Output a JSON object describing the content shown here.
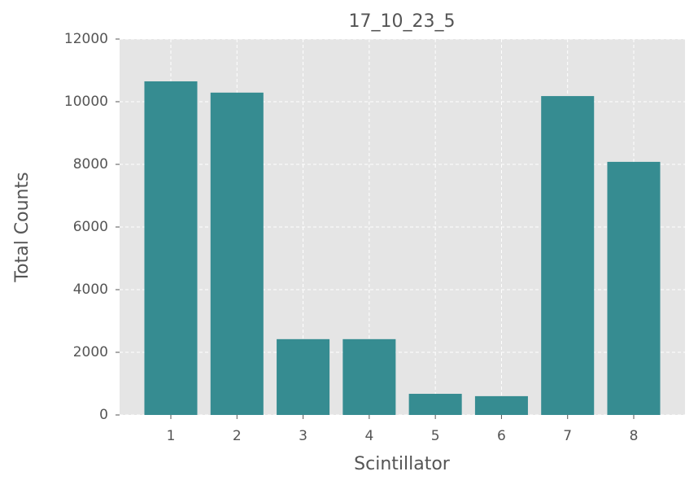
{
  "chart_data": {
    "type": "bar",
    "title": "17_10_23_5",
    "x_label": "Scintillator",
    "y_label": "Total Counts",
    "categories": [
      "1",
      "2",
      "3",
      "4",
      "5",
      "6",
      "7",
      "8"
    ],
    "values": [
      10650,
      10290,
      2420,
      2420,
      675,
      600,
      10180,
      8080
    ],
    "color": "#368c91",
    "ylim": [
      0,
      12000
    ],
    "yticks": [
      0,
      2000,
      4000,
      6000,
      8000,
      10000,
      12000
    ],
    "grid": true
  }
}
